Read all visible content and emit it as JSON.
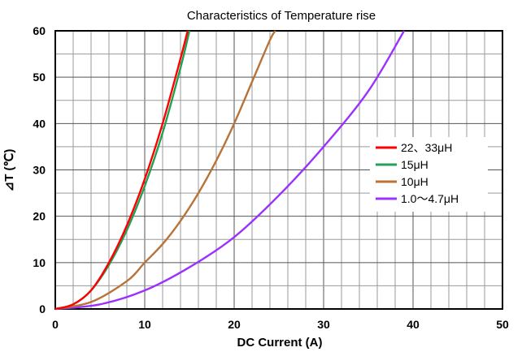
{
  "chart_data": {
    "type": "line",
    "title": "Characteristics of Temperature rise",
    "xlabel": "DC Current (A)",
    "ylabel": "⊿T (℃)",
    "xlim": [
      0,
      50
    ],
    "ylim": [
      0,
      60
    ],
    "xticks": [
      "0",
      "10",
      "20",
      "30",
      "40",
      "50"
    ],
    "yticks": [
      "0",
      "10",
      "20",
      "30",
      "40",
      "50",
      "60"
    ],
    "grid": true,
    "legend_position": "right",
    "series": [
      {
        "name": "22、33μH",
        "color": "#ff0000",
        "x": [
          0,
          2,
          4,
          6,
          8,
          10,
          12,
          14,
          14.8
        ],
        "y": [
          0,
          1,
          4,
          10,
          18,
          28,
          40,
          54,
          60
        ]
      },
      {
        "name": "15μH",
        "color": "#22a055",
        "x": [
          0,
          2,
          4,
          6,
          8,
          10,
          12,
          14,
          15
        ],
        "y": [
          0,
          1,
          4,
          9.5,
          17,
          26.5,
          38,
          52,
          60
        ]
      },
      {
        "name": "10μH",
        "color": "#b8733a",
        "x": [
          0,
          4,
          8,
          10,
          12,
          14,
          16,
          18,
          20,
          22,
          24,
          24.6
        ],
        "y": [
          0,
          1.5,
          6,
          10,
          14,
          19,
          25,
          32,
          40,
          49,
          58,
          60
        ]
      },
      {
        "name": "1.0～4.7μH",
        "color": "#9b30ff",
        "x": [
          0,
          5,
          10,
          15,
          20,
          25,
          30,
          35,
          39
        ],
        "y": [
          0,
          1,
          4,
          9,
          15.5,
          24.5,
          35,
          47,
          60
        ]
      }
    ]
  }
}
